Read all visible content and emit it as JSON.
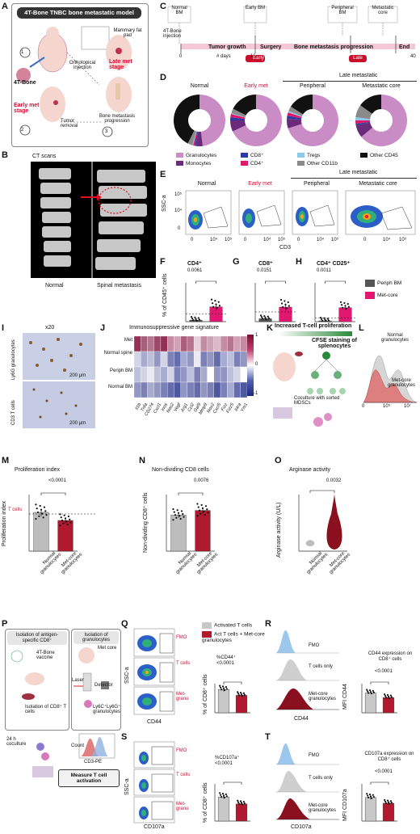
{
  "panels": {
    "A": {
      "label": "A",
      "title": "4T-Bone TNBC bone metastatic model",
      "mammary": "Mammary fat pad",
      "bone": "4T-Bone",
      "ortho": "Orthotopical injection",
      "late": "Late met stage",
      "early": "Early met stage",
      "removal": "Tumor removal",
      "progression": "Bone metastasis progression",
      "steps": [
        "1",
        "2",
        "3"
      ]
    },
    "B": {
      "label": "B",
      "title": "CT scans",
      "left": "Normal",
      "right": "Spinal metastasis"
    },
    "C": {
      "label": "C",
      "stages": [
        "Normal BM",
        "Early BM",
        "Peripheral BM",
        "Metastatic core"
      ],
      "injection": "4T-Bone injection",
      "phases": [
        "Tumor growth",
        "Surgery",
        "Bone metastasis progression",
        "End"
      ],
      "days": "# days",
      "ticks": [
        "0",
        "16",
        "40"
      ],
      "early": "Early",
      "late": "Late"
    },
    "D": {
      "label": "D",
      "titles": [
        "Normal",
        "Early met",
        "Peripheral",
        "Metastatic core"
      ],
      "late_header": "Late metastatic",
      "legend": [
        "Granulocytes",
        "Monocytes",
        "CD8⁺",
        "CD4⁺",
        "Tregs",
        "Other CD11b",
        "Other CD45"
      ]
    },
    "E": {
      "label": "E",
      "titles": [
        "Normal",
        "Early met",
        "Peripheral",
        "Metastatic core"
      ],
      "late_header": "Late metastatic",
      "ylabel": "SSC-a",
      "xlabel": "CD3",
      "yticks": [
        "10⁵",
        "10⁴",
        "0"
      ],
      "xticks": [
        "0",
        "10⁴",
        "10⁵"
      ]
    },
    "F": {
      "label": "F",
      "title": "CD4⁺",
      "p": "0.0061",
      "ylabel": "% of CD45⁺ cells"
    },
    "G": {
      "label": "G",
      "title": "CD8⁺",
      "p": "0.0151"
    },
    "H": {
      "label": "H",
      "title": "CD4⁺ CD25⁺",
      "p": "0.0011",
      "legend": [
        "Periph BM",
        "Met-core"
      ]
    },
    "I": {
      "label": "I",
      "mag": "x20",
      "rows": [
        "Ly6G granulocytes",
        "CD3 T cells"
      ],
      "scale": "200 µm"
    },
    "J": {
      "label": "J",
      "title": "Immunosuppressive gene signature",
      "rows": [
        "Met",
        "Normal spine",
        "Periph BM",
        "Normal BM"
      ],
      "cols": [
        "Il1b",
        "Tnfa",
        "CD274",
        "Cxcl1",
        "Inos",
        "Nos2",
        "Vegf",
        "Arg1",
        "Ccl2",
        "Gal9",
        "Mmp9",
        "Nox2",
        "Cxcl5",
        "Fizz",
        "Fizz5",
        "Il4ra",
        "Ym1"
      ],
      "scale": [
        "1",
        "0",
        "-1"
      ]
    },
    "K": {
      "label": "K",
      "title": "Increased T-cell proliferation",
      "cfse": "CFSE staining of splenocytes",
      "coculture": "Coculture with sorted MDSCs"
    },
    "L": {
      "label": "L",
      "normal": "Normal granulocytes",
      "met": "Met-core granulocytes",
      "xticks": [
        "0",
        "10⁵",
        "10⁷"
      ]
    },
    "M": {
      "label": "M",
      "title": "Proliferation index",
      "p": "<0.0001",
      "ylabel": "Proliferation index",
      "ref": "T cells",
      "cats": [
        "Normal granulocytes",
        "Met-core granulocytes"
      ]
    },
    "N": {
      "label": "N",
      "title": "Non-dividing CD8 cells",
      "p": "0.0076",
      "ylabel": "Non-dividing CD8⁺ cells",
      "cats": [
        "Normal granulocytes",
        "Met-core granulocytes"
      ]
    },
    "O": {
      "label": "O",
      "title": "Arginase activity",
      "p": "0.0032",
      "ylabel": "Arginase activity (U/L)",
      "cats": [
        "Normal granulocytes",
        "Met-core granulocytes"
      ]
    },
    "P": {
      "label": "P",
      "box1": "Isolation of antigen-specific CD8⁺",
      "box2": "Isolation of granulocytes",
      "vaccine": "4T-Bone vaccine",
      "isoT": "Isolation of CD8⁺ T cells",
      "metcore": "Met core",
      "laser": "Laser",
      "detector": "Detector",
      "ly6": "Ly6C⁺Ly6G⁺ granulocytes",
      "coculture": "24 h coculture",
      "count": "Count",
      "cfse": "CD3-PE",
      "measure": "Measure T cell activation"
    },
    "Q": {
      "label": "Q",
      "gates": [
        "FMO",
        "T cells",
        "Met-granu"
      ],
      "ylabel": "SSC-a",
      "xlabel": "CD44",
      "legend": [
        "Activated T cells",
        "Act T cells + Met-core granulocytes"
      ],
      "title": "%CD44⁺",
      "p": "<0.0001",
      "ylab2": "% of CD8⁺ cells"
    },
    "R": {
      "label": "R",
      "fmo": "FMO",
      "tonly": "T cells only",
      "met": "Met-core granulocytes",
      "xlabel": "CD44",
      "title": "CD44 expression on CD8⁺ cells",
      "p": "<0.0001",
      "ylabel": "MFI CD44",
      "yticks": [
        "100,000",
        "50,000",
        "0"
      ]
    },
    "S": {
      "label": "S",
      "gates": [
        "FMO",
        "T cells",
        "Met-granu"
      ],
      "ylabel": "SSC-a",
      "xlabel": "CD107a",
      "title": "%CD107a⁺",
      "p": "<0.0001",
      "ylab2": "% of CD8⁺ cells"
    },
    "T": {
      "label": "T",
      "fmo": "FMO",
      "tonly": "T cells only",
      "met": "Met-core granulocytes",
      "xlabel": "CD107a",
      "title": "CD107a expression on CD8⁺ cells",
      "p": "<0.0001",
      "ylabel": "MFI CD107a"
    }
  },
  "colors": {
    "granulocytes": "#c98cc4",
    "monocytes": "#6b2a7a",
    "cd8": "#2e3aa0",
    "cd4": "#e0186a",
    "tregs": "#8ec8ea",
    "other11b": "#8a8a8a",
    "other45": "#111111",
    "red": "#b0192e",
    "grey": "#bdbdbd"
  },
  "chart_data": [
    {
      "type": "pie",
      "title": "Normal",
      "labels": [
        "Granulocytes",
        "Monocytes",
        "CD8⁺",
        "CD4⁺",
        "Tregs",
        "Other CD11b",
        "Other CD45"
      ],
      "values": [
        48,
        4,
        1,
        1,
        0.5,
        3,
        42.5
      ]
    },
    {
      "type": "pie",
      "title": "Early met",
      "labels": [
        "Granulocytes",
        "Monocytes",
        "CD8⁺",
        "CD4⁺",
        "Tregs",
        "Other CD11b",
        "Other CD45"
      ],
      "values": [
        68,
        7,
        2,
        2,
        0.5,
        3,
        17.5
      ]
    },
    {
      "type": "pie",
      "title": "Peripheral",
      "labels": [
        "Granulocytes",
        "Monocytes",
        "CD8⁺",
        "CD4⁺",
        "Tregs",
        "Other CD11b",
        "Other CD45"
      ],
      "values": [
        70,
        6,
        2,
        2,
        1,
        3,
        16
      ]
    },
    {
      "type": "pie",
      "title": "Metastatic core",
      "labels": [
        "Granulocytes",
        "Monocytes",
        "CD8⁺",
        "CD4⁺",
        "Tregs",
        "Other CD11b",
        "Other CD45"
      ],
      "values": [
        64,
        8,
        1,
        2,
        2,
        8,
        15
      ]
    },
    {
      "type": "bar",
      "title": "CD4⁺",
      "categories": [
        "Periph BM",
        "Met-core"
      ],
      "values": [
        0.2,
        1.9
      ],
      "ylim": [
        0,
        5
      ]
    },
    {
      "type": "bar",
      "title": "CD8⁺",
      "categories": [
        "Periph BM",
        "Met-core"
      ],
      "values": [
        0.3,
        1.5
      ],
      "ylim": [
        0,
        4
      ]
    },
    {
      "type": "bar",
      "title": "CD4⁺ CD25⁺",
      "categories": [
        "Periph BM",
        "Met-core"
      ],
      "values": [
        0.01,
        0.18
      ],
      "ylim": [
        0,
        0.5
      ]
    },
    {
      "type": "bar",
      "title": "Proliferation index",
      "categories": [
        "Normal granulocytes",
        "Met-core granulocytes"
      ],
      "values": [
        2.4,
        1.9
      ],
      "ylim": [
        0,
        3.5
      ]
    },
    {
      "type": "bar",
      "title": "Non-dividing CD8 cells",
      "categories": [
        "Normal granulocytes",
        "Met-core granulocytes"
      ],
      "values": [
        32,
        36
      ],
      "ylim": [
        0,
        50
      ]
    },
    {
      "type": "bar",
      "title": "%CD44⁺",
      "categories": [
        "Activated T cells",
        "Act T cells + Met-core granulocytes"
      ],
      "values": [
        32,
        24
      ],
      "ylim": [
        0,
        40
      ]
    },
    {
      "type": "bar",
      "title": "CD44 expression on CD8⁺ cells",
      "categories": [
        "Activated T cells",
        "Act T cells + Met-core granulocytes"
      ],
      "values": [
        102000,
        78000
      ],
      "ylim": [
        0,
        150000
      ]
    },
    {
      "type": "bar",
      "title": "%CD107a⁺",
      "categories": [
        "Activated T cells",
        "Act T cells + Met-core granulocytes"
      ],
      "values": [
        52,
        37
      ],
      "ylim": [
        0,
        80
      ]
    },
    {
      "type": "bar",
      "title": "CD107a expression on CD8⁺ cells",
      "categories": [
        "Activated T cells",
        "Act T cells + Met-core granulocytes"
      ],
      "values": [
        9500,
        7200
      ],
      "ylim": [
        0,
        15000
      ]
    }
  ]
}
